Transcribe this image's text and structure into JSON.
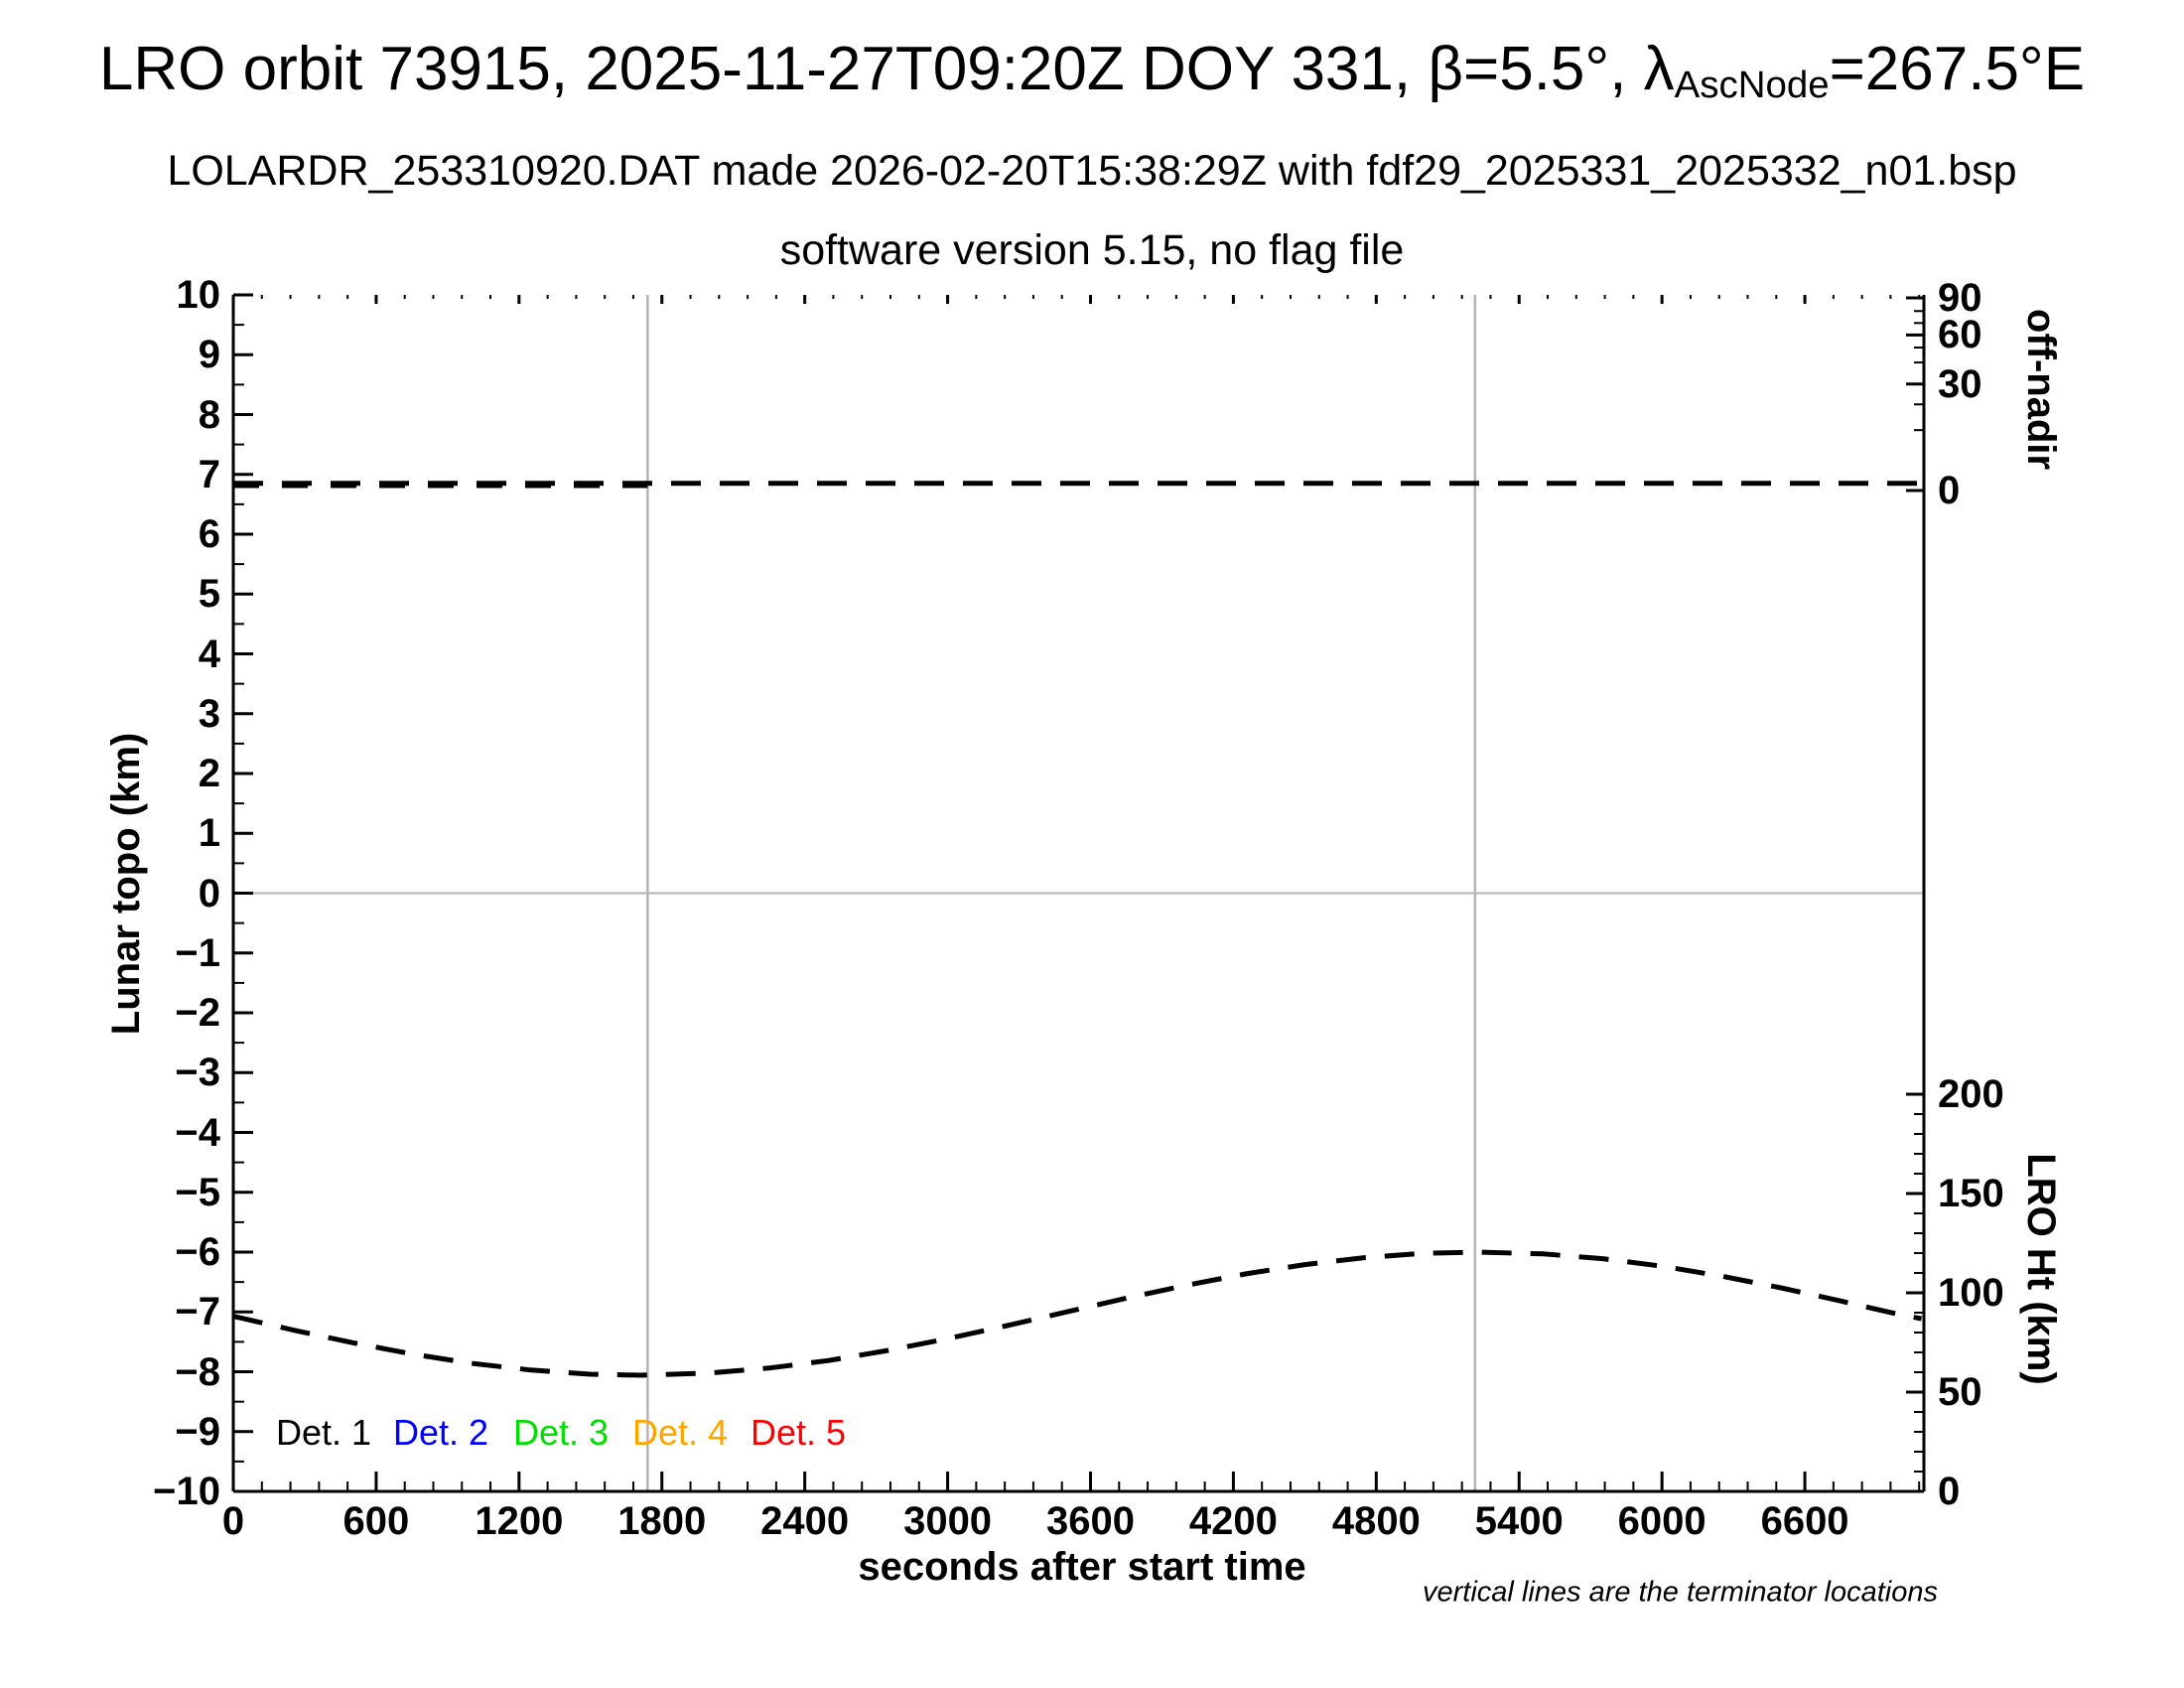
{
  "title": {
    "part1": "LRO orbit 73915, 2025-11-27T09:20Z DOY 331, β=5.5°, λ",
    "subscript": "AscNode",
    "part2": "=267.5°E"
  },
  "subtitle_line1": "LOLARDR_253310920.DAT made 2026-02-20T15:38:29Z with fdf29_2025331_2025332_n01.bsp",
  "subtitle_line2": "software version 5.15, no flag file",
  "footnote": "vertical lines are the terminator locations",
  "legend": {
    "items": [
      {
        "label": "Det. 1",
        "color": "#000000"
      },
      {
        "label": "Det. 2",
        "color": "#0000ff"
      },
      {
        "label": "Det. 3",
        "color": "#00dd00"
      },
      {
        "label": "Det. 4",
        "color": "#ffa500"
      },
      {
        "label": "Det. 5",
        "color": "#ff0000"
      }
    ]
  },
  "axes": {
    "x": {
      "label": "seconds after start time",
      "min": 0,
      "max": 7100,
      "major_tick_step": 600,
      "minor_tick_step": 120,
      "major_tick_labels": [
        0,
        600,
        1200,
        1800,
        2400,
        3000,
        3600,
        4200,
        4800,
        5400,
        6000,
        6600
      ]
    },
    "y_left": {
      "label": "Lunar topo (km)",
      "min": -10,
      "max": 10,
      "major_tick_step": 1,
      "minor_tick_step": 0.5
    },
    "y_right_upper": {
      "label": "off-nadir",
      "unit": "degrees",
      "labeled_ticks": [
        90,
        60,
        30,
        0
      ],
      "scale_nonlinear_ticks": [
        {
          "deg": 90,
          "topo": 9.95
        },
        {
          "deg": 80,
          "topo": 9.73
        },
        {
          "deg": 70,
          "topo": 9.53
        },
        {
          "deg": 60,
          "topo": 9.33
        },
        {
          "deg": 50,
          "topo": 9.12
        },
        {
          "deg": 40,
          "topo": 8.87
        },
        {
          "deg": 30,
          "topo": 8.51
        },
        {
          "deg": 20,
          "topo": 8.17
        },
        {
          "deg": 10,
          "topo": 7.74
        },
        {
          "deg": 0,
          "topo": 6.73
        }
      ]
    },
    "y_right_lower": {
      "label": "LRO Ht (km)",
      "min": 0,
      "max": 200,
      "major_tick_step": 50,
      "minor_tick_step": 10,
      "km_per_topo_unit": 30.125,
      "zero_km_at_topo": -10
    }
  },
  "style_colors": {
    "curve": "#000000",
    "reference_lines": "#b4b4b4",
    "axis": "#000000"
  },
  "chart_data": {
    "type": "line",
    "title": "LRO orbit 73915, 2025-11-27T09:20Z DOY 331, β=5.5°, λAscNode=267.5°E",
    "xlabel": "seconds after start time",
    "ylabel_left": "Lunar topo (km)",
    "ylabel_right_upper": "off-nadir",
    "ylabel_right_lower": "LRO Ht (km)",
    "x_range_s": [
      0,
      7100
    ],
    "y_left_range_km": [
      -10,
      10
    ],
    "grid": false,
    "legend_position": "inside-bottom-left",
    "horizontal_reference_topo_km": 0,
    "terminator_lines_s": [
      1740,
      5215
    ],
    "series": [
      {
        "name": "spacecraft off-nadir angle",
        "axis": "right-upper",
        "style": "dashed",
        "color": "#000000",
        "x_s": [
          0,
          7090
        ],
        "y_deg": [
          1.2,
          1.2
        ]
      },
      {
        "name": "LRO height above surface",
        "axis": "right-lower",
        "style": "dashed",
        "color": "#000000",
        "x_s": [
          0,
          250,
          500,
          750,
          1000,
          1250,
          1500,
          1710,
          2000,
          2250,
          2500,
          2750,
          3000,
          3250,
          3500,
          3750,
          4000,
          4250,
          4500,
          4750,
          5000,
          5225,
          5500,
          5750,
          6000,
          6250,
          6500,
          6750,
          7000,
          7090
        ],
        "y_km": [
          88.2,
          81.3,
          74.9,
          69.2,
          64.5,
          61.1,
          59.0,
          58.5,
          59.6,
          62.1,
          65.9,
          71.0,
          76.9,
          83.5,
          90.4,
          97.3,
          103.7,
          109.5,
          114.2,
          117.7,
          119.9,
          120.5,
          119.6,
          117.2,
          113.4,
          108.4,
          102.5,
          95.9,
          89.0,
          87.0
        ]
      }
    ]
  }
}
